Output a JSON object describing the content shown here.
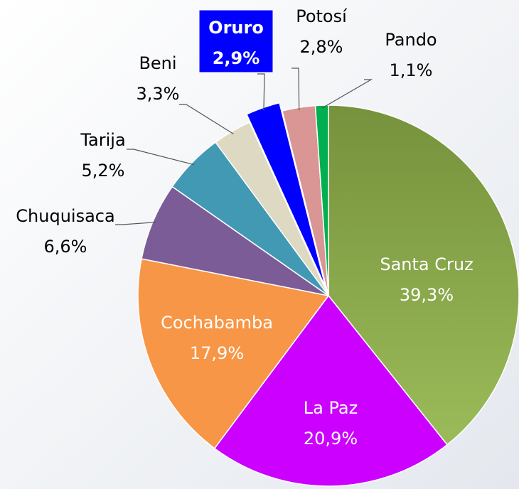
{
  "chart_data": {
    "type": "pie",
    "categories": [
      "Santa Cruz",
      "La Paz",
      "Cochabamba",
      "Chuquisaca",
      "Tarija",
      "Beni",
      "Oruro",
      "Potosí",
      "Pando"
    ],
    "values": [
      39.3,
      20.9,
      17.9,
      6.6,
      5.2,
      3.3,
      2.9,
      2.8,
      1.1
    ],
    "value_labels": [
      "39,3%",
      "20,9%",
      "17,9%",
      "6,6%",
      "5,2%",
      "3,3%",
      "2,9%",
      "2,8%",
      "1,1%"
    ],
    "colors": [
      "#8aab4a",
      "#cc00ff",
      "#f79646",
      "#7b5c97",
      "#4199b4",
      "#ddd9c3",
      "#0000ff",
      "#d99694",
      "#00b050"
    ]
  }
}
